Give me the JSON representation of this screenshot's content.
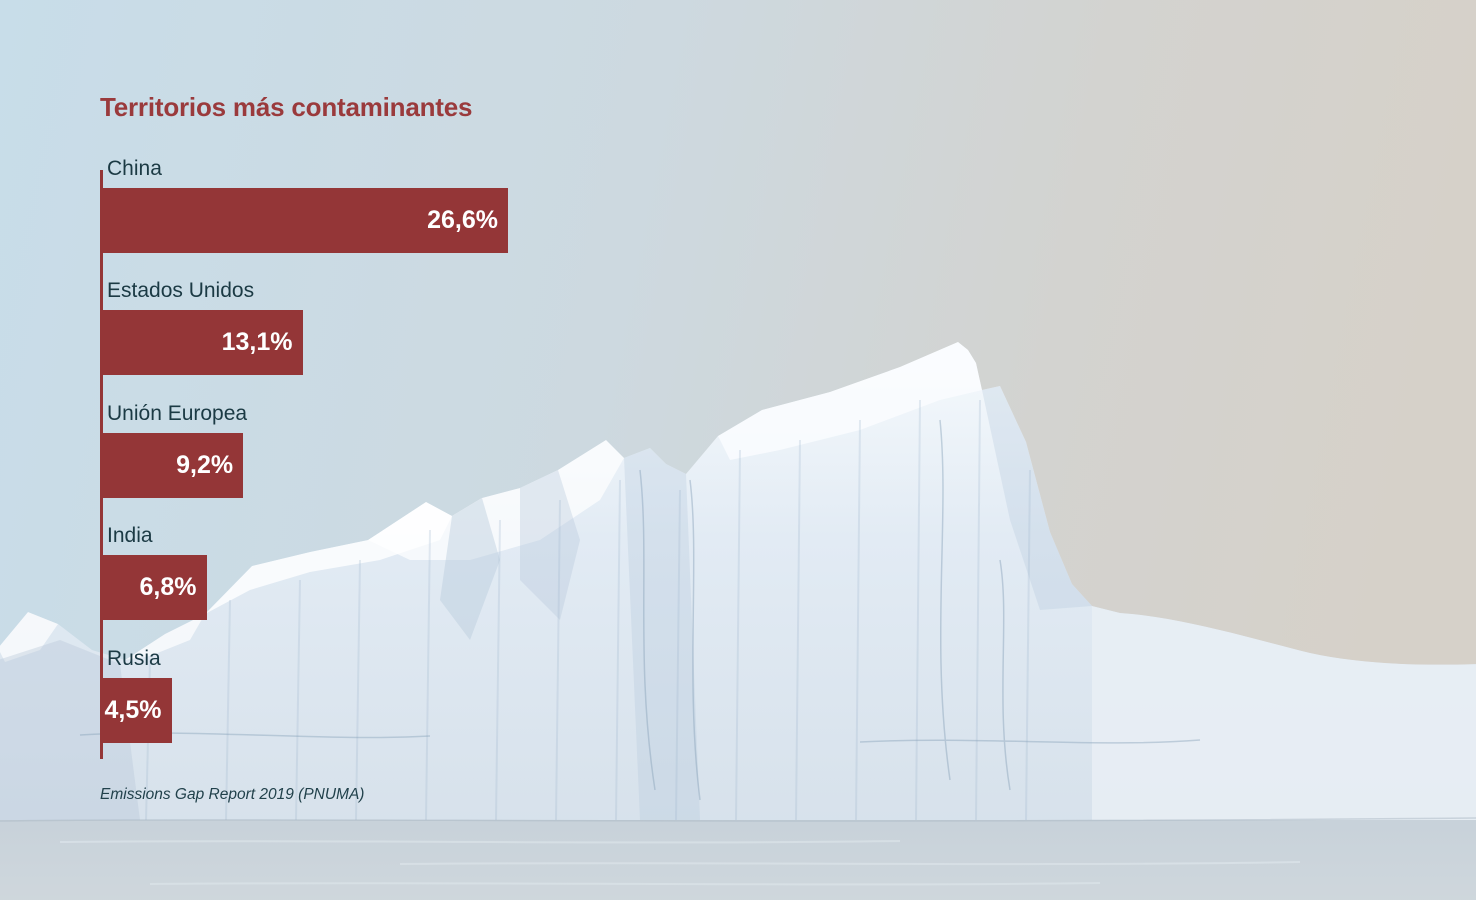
{
  "page": {
    "title": "Territorios más contaminantes",
    "source_note": "Emissions Gap Report 2019 (PNUMA)"
  },
  "colors": {
    "bar": "#943637",
    "axis": "#943637",
    "title": "#9a3a3c",
    "label": "#1b3a44",
    "value": "#ffffff",
    "source": "#21414b"
  },
  "chart_data": {
    "type": "bar",
    "orientation": "horizontal",
    "title": "Territorios más contaminantes",
    "categories": [
      "China",
      "Estados Unidos",
      "Unión Europea",
      "India",
      "Rusia"
    ],
    "values": [
      26.6,
      13.1,
      9.2,
      6.8,
      4.5
    ],
    "value_labels": [
      "26,6%",
      "13,1%",
      "9,2%",
      "6,8%",
      "4,5%"
    ],
    "unit": "%",
    "xlim": [
      0,
      26.6
    ],
    "grid": false,
    "legend": false,
    "value_label_position": "inside-right",
    "source": "Emissions Gap Report 2019 (PNUMA)"
  }
}
